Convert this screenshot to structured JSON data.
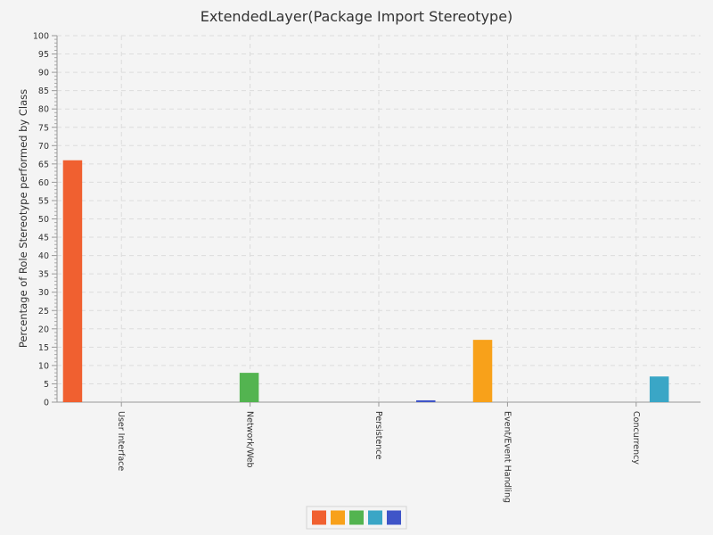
{
  "chart_data": {
    "type": "bar",
    "title": "ExtendedLayer(Package Import Stereotype)",
    "xlabel": "",
    "ylabel": "Percentage of Role Stereotype performed by Class",
    "ylim": [
      0,
      100
    ],
    "ytick_step": 5,
    "grid": true,
    "legend_position": "bottom",
    "categories": [
      "User Interface",
      "Network/Web",
      "Persistence",
      "Event/Event Handling",
      "Concurrency"
    ],
    "series": [
      {
        "color": "#f06030",
        "values": [
          66,
          0,
          0,
          0,
          0
        ]
      },
      {
        "color": "#f8a11a",
        "values": [
          0,
          0,
          0,
          17,
          0
        ]
      },
      {
        "color": "#53b450",
        "values": [
          0,
          8,
          0,
          0,
          0
        ]
      },
      {
        "color": "#3aa6c6",
        "values": [
          0,
          0,
          0,
          0,
          7
        ]
      },
      {
        "color": "#3f55c8",
        "values": [
          0,
          0,
          0.5,
          0,
          0
        ]
      }
    ]
  }
}
